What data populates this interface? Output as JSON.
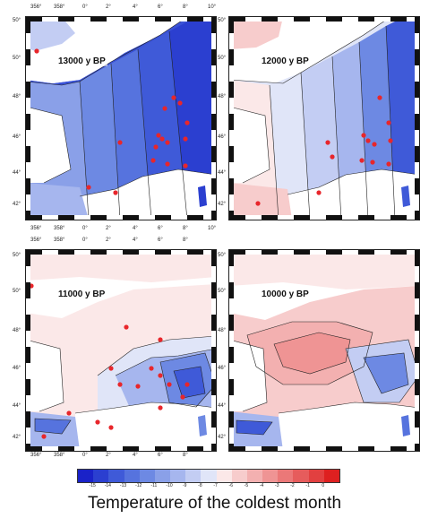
{
  "panels": [
    {
      "id": "p1",
      "label": "13000 y BP",
      "theme": "cold"
    },
    {
      "id": "p2",
      "label": "12000 y BP",
      "theme": "mixed"
    },
    {
      "id": "p3",
      "label": "11000 y BP",
      "theme": "mild"
    },
    {
      "id": "p4",
      "label": "10000 y BP",
      "theme": "warm"
    }
  ],
  "axes": {
    "top_lon_labels": [
      "356°",
      "358°",
      "0°",
      "2°",
      "4°",
      "6°",
      "8°",
      "10°"
    ],
    "bottom_lon_labels": [
      "356°",
      "358°",
      "0°",
      "2°",
      "4°",
      "6°",
      "8°"
    ],
    "lat_labels": [
      "50°",
      "48°",
      "46°",
      "44°",
      "42°"
    ]
  },
  "colorbar": {
    "title": "Temperature of the coldest month",
    "colors": [
      "#1a22c8",
      "#2b3fd0",
      "#3f5ad8",
      "#5673de",
      "#6d89e3",
      "#8aa0e8",
      "#a6b6ee",
      "#c3cdf3",
      "#e0e5f8",
      "#fbe8e8",
      "#f7cccc",
      "#f3b0b0",
      "#ef9494",
      "#eb7878",
      "#e65c5c",
      "#e24040",
      "#de2020"
    ],
    "tick_labels": [
      "-15",
      "-14",
      "-13",
      "-12",
      "-11",
      "-10",
      "-9",
      "-8",
      "-7",
      "-6",
      "-5",
      "-4",
      "-3",
      "-2",
      "-1",
      "0"
    ]
  },
  "marker_color": "#e8262b"
}
